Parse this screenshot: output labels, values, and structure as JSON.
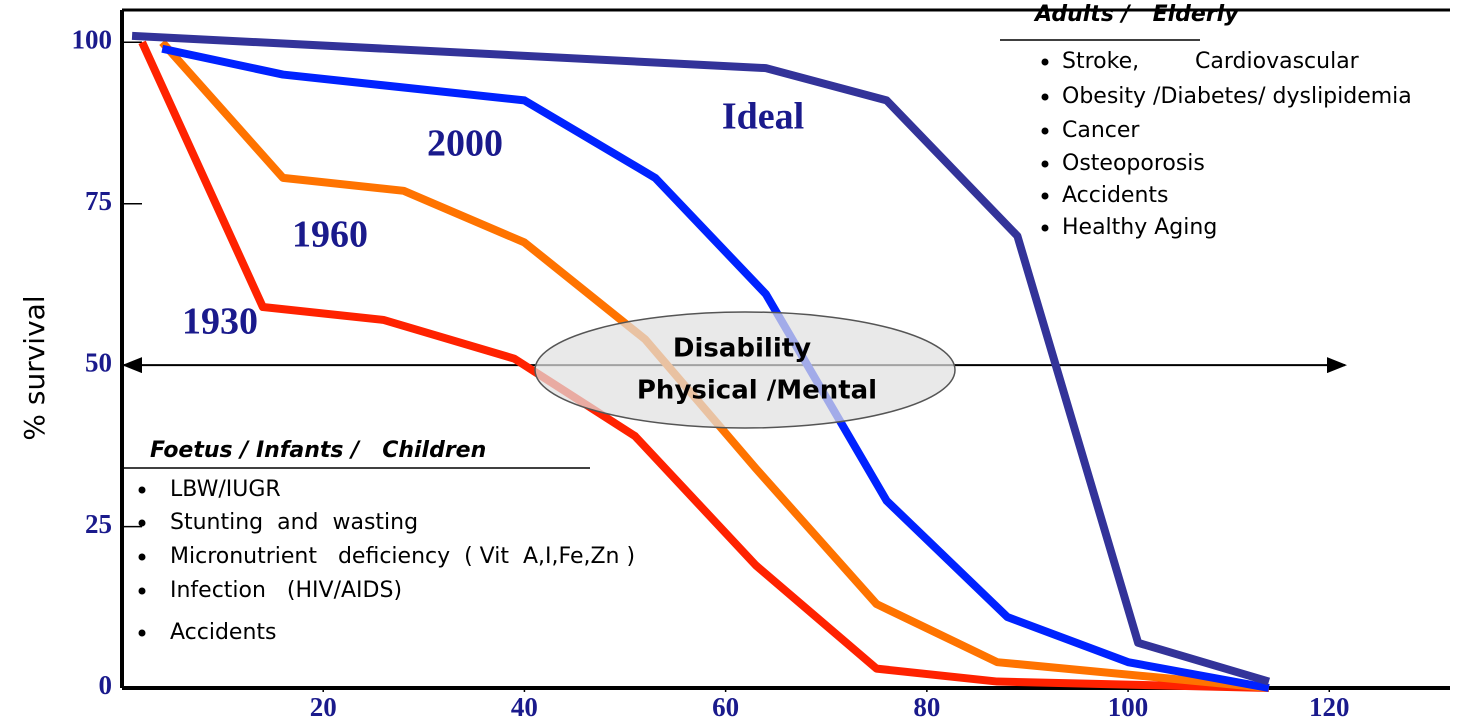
{
  "chart_data": {
    "type": "line",
    "y_label": "% survival",
    "xlim": [
      0,
      132
    ],
    "ylim": [
      0,
      105
    ],
    "xticks": [
      20,
      40,
      60,
      80,
      100,
      120
    ],
    "yticks": [
      0,
      25,
      50,
      75,
      100
    ],
    "series": [
      {
        "name": "1930",
        "color": "#ff2200",
        "x": [
          2,
          14,
          26,
          39,
          51,
          63,
          75,
          87,
          114
        ],
        "values": [
          100,
          59,
          57,
          51,
          39,
          19,
          3,
          1,
          0
        ]
      },
      {
        "name": "1960",
        "color": "#ff7300",
        "x": [
          4,
          16,
          28,
          40,
          52,
          63,
          75,
          87,
          114
        ],
        "values": [
          100,
          79,
          77,
          69,
          54,
          34,
          13,
          4,
          0
        ]
      },
      {
        "name": "2000",
        "color": "#0022ff",
        "x": [
          4,
          16,
          40,
          53,
          64,
          76,
          88,
          100,
          114
        ],
        "values": [
          99,
          95,
          91,
          79,
          61,
          29,
          11,
          4,
          0
        ]
      },
      {
        "name": "Ideal",
        "color": "#333399",
        "x": [
          1,
          64,
          76,
          89,
          101,
          114
        ],
        "values": [
          101,
          96,
          91,
          70,
          7,
          1
        ]
      }
    ],
    "annotations": [
      "Disability",
      "Physical /Mental"
    ],
    "boxes": [
      {
        "title": "Adults /   Elderly",
        "items": [
          "Stroke,        Cardiovascular",
          "Obesity /Diabetes/ dyslipidemia",
          "Cancer",
          "Osteoporosis",
          "Accidents",
          "Healthy Aging"
        ]
      },
      {
        "title": "Foetus / Infants /   Children",
        "items": [
          "LBW/IUGR",
          "Stunting  and  wasting",
          "Micronutrient   deficiency  ( Vit  A,I,Fe,Zn )",
          "Infection   (HIV/AIDS)",
          "Accidents"
        ]
      }
    ]
  }
}
